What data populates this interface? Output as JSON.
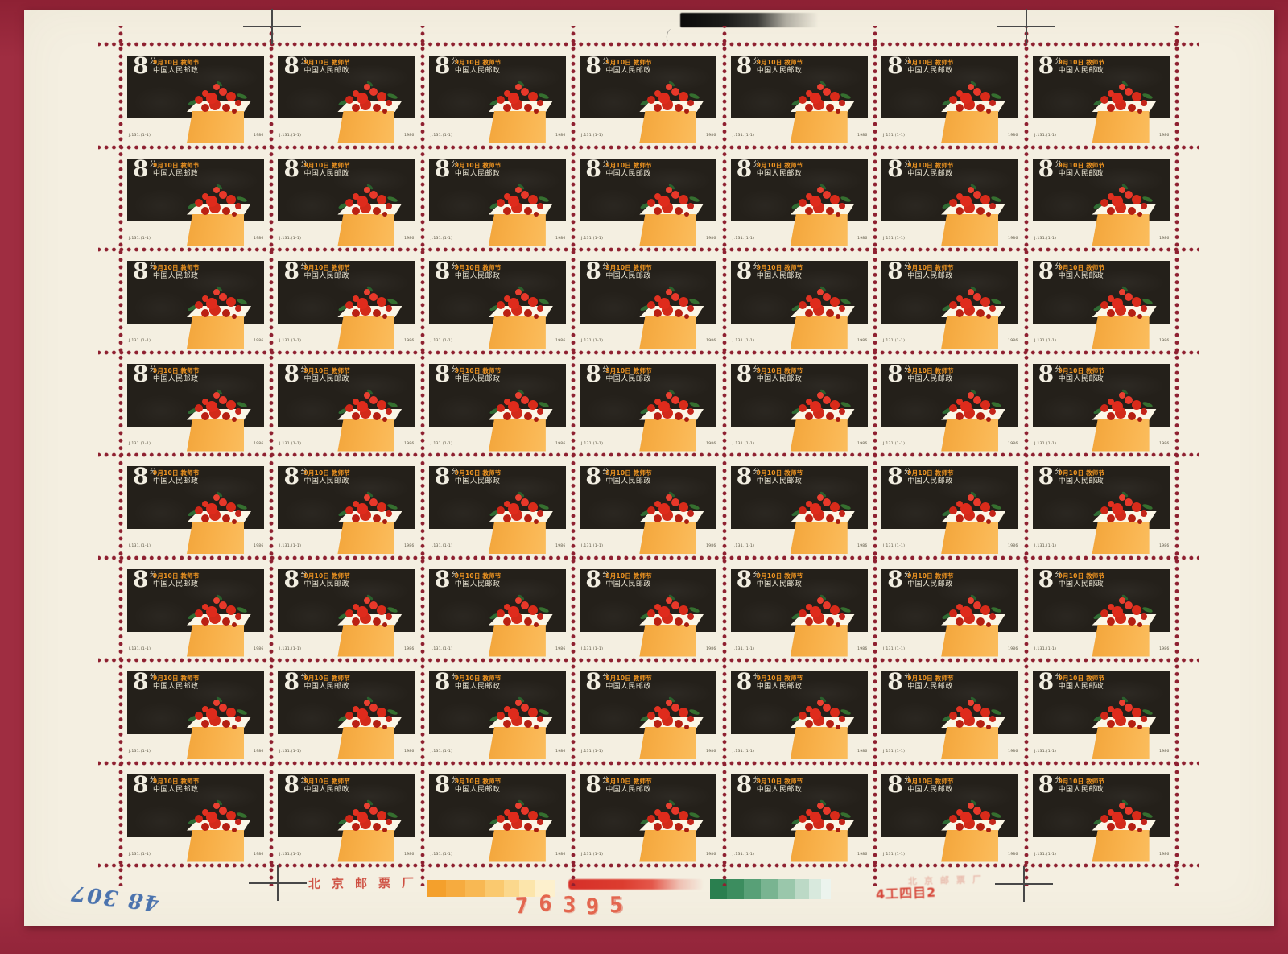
{
  "sheet": {
    "rows": 8,
    "cols": 7,
    "stamp": {
      "denomination": "8",
      "denomination_unit": "分",
      "title_line1": "9月10日 教师节",
      "title_line2": "中国人民邮政",
      "catalog_left": "J.131.(1-1)",
      "year_right": "1986"
    },
    "margin": {
      "sheet_number": "76395",
      "printer_mark": "北京邮票厂",
      "inspection_chop": "4工四目2",
      "offset_mark": "北京邮票厂",
      "handwritten_note": "48 307"
    },
    "colors": {
      "mat": "#9f2d41",
      "paper": "#f4efe1",
      "perf_dot": "#8e2030",
      "board": "#24201a",
      "accent_orange": "#ee9421",
      "desk_orange": "#f8b049",
      "flower_red": "#df2b1c",
      "leaf_green": "#2f6b33",
      "number_red": "#e14f36",
      "handwriting_blue": "#2e5ea6"
    }
  }
}
